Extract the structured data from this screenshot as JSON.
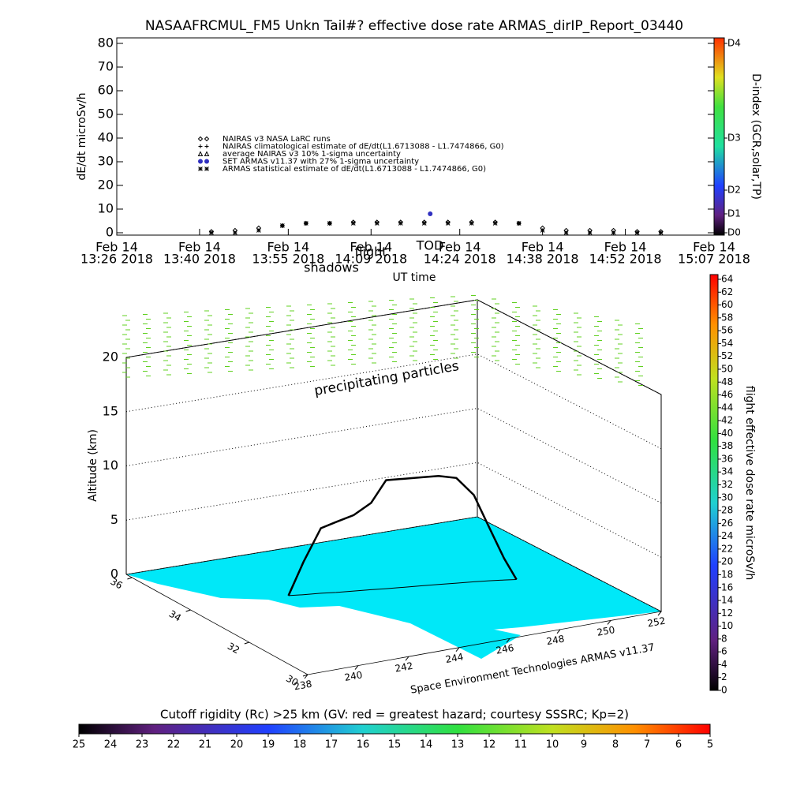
{
  "chart_data": [
    {
      "type": "scatter",
      "title": "NASAAFRCMUL_FM5 Unkn Tail#? effective dose rate ARMAS_dirIP_Report_03440",
      "y_label": "dE/dt microSv/h",
      "x_label": "UT time",
      "annotations": [
        "shadows",
        "flight",
        "TOD"
      ],
      "xlim": [
        "2018-02-14 13:26",
        "2018-02-14 15:07"
      ],
      "xticks": [
        {
          "value": "2018-02-14 13:26",
          "label": [
            "Feb 14",
            "13:26 2018"
          ]
        },
        {
          "value": "2018-02-14 13:40",
          "label": [
            "Feb 14",
            "13:40 2018"
          ]
        },
        {
          "value": "2018-02-14 13:55",
          "label": [
            "Feb 14",
            "13:55 2018"
          ]
        },
        {
          "value": "2018-02-14 14:09",
          "label": [
            "Feb 14",
            "14:09 2018"
          ]
        },
        {
          "value": "2018-02-14 14:24",
          "label": [
            "Feb 14",
            "14:24 2018"
          ]
        },
        {
          "value": "2018-02-14 14:38",
          "label": [
            "Feb 14",
            "14:38 2018"
          ]
        },
        {
          "value": "2018-02-14 14:52",
          "label": [
            "Feb 14",
            "14:52 2018"
          ]
        },
        {
          "value": "2018-02-14 15:07",
          "label": [
            "Feb 14",
            "15:07 2018"
          ]
        }
      ],
      "ylim": [
        0,
        80
      ],
      "yticks": [
        0,
        10,
        20,
        30,
        40,
        50,
        60,
        70,
        80
      ],
      "colorbar_label": "D-index (GCR,solar,TP)",
      "colorbar_ticks": [
        {
          "value": 0,
          "label": "D0"
        },
        {
          "value": 8,
          "label": "D1"
        },
        {
          "value": 18,
          "label": "D2"
        },
        {
          "value": 40,
          "label": "D3"
        },
        {
          "value": 80,
          "label": "D4"
        }
      ],
      "series": [
        {
          "name": "NAIRAS v3 NASA LaRC runs",
          "color": "#000000",
          "marker": "diamond",
          "x": [
            "2018-02-14 13:42",
            "2018-02-14 13:46",
            "2018-02-14 13:50",
            "2018-02-14 13:54",
            "2018-02-14 13:58",
            "2018-02-14 14:02",
            "2018-02-14 14:06",
            "2018-02-14 14:10",
            "2018-02-14 14:14",
            "2018-02-14 14:18",
            "2018-02-14 14:22",
            "2018-02-14 14:26",
            "2018-02-14 14:30",
            "2018-02-14 14:34",
            "2018-02-14 14:38",
            "2018-02-14 14:42",
            "2018-02-14 14:46",
            "2018-02-14 14:50",
            "2018-02-14 14:54",
            "2018-02-14 14:58"
          ],
          "values": [
            0.5,
            1,
            2,
            3,
            4,
            4,
            4.5,
            4.5,
            4.5,
            4.5,
            4.5,
            4.5,
            4.5,
            4,
            2,
            1,
            1,
            1,
            0.5,
            0.5
          ]
        },
        {
          "name": "NAIRAS climatological estimate of dE/dt(L1.6713088 - L1.7474866, G0)",
          "color": "#000000",
          "marker": "plus",
          "x": [],
          "values": []
        },
        {
          "name": "average NAIRAS v3 10% 1-sigma uncertainty",
          "color": "#000000",
          "marker": "triangle",
          "x": [],
          "values": []
        },
        {
          "name": "SET ARMAS v11.37 with 27% 1-sigma uncertainty",
          "color": "#3030c0",
          "marker": "dot",
          "x": [
            "2018-02-14 14:19"
          ],
          "values": [
            8
          ]
        },
        {
          "name": "ARMAS statistical estimate of dE/dt(L1.6713088 - L1.7474866, G0)",
          "color": "#000000",
          "marker": "star",
          "x": [
            "2018-02-14 13:42",
            "2018-02-14 13:46",
            "2018-02-14 13:50",
            "2018-02-14 13:54",
            "2018-02-14 13:58",
            "2018-02-14 14:02",
            "2018-02-14 14:06",
            "2018-02-14 14:10",
            "2018-02-14 14:14",
            "2018-02-14 14:18",
            "2018-02-14 14:22",
            "2018-02-14 14:26",
            "2018-02-14 14:30",
            "2018-02-14 14:34",
            "2018-02-14 14:38",
            "2018-02-14 14:42",
            "2018-02-14 14:46",
            "2018-02-14 14:50",
            "2018-02-14 14:54",
            "2018-02-14 14:58"
          ],
          "values": [
            0,
            0,
            1,
            3,
            4,
            4,
            4,
            4,
            4,
            4,
            4,
            4,
            4,
            4,
            1,
            0,
            0,
            0,
            0,
            0
          ]
        }
      ]
    },
    {
      "type": "path3d",
      "z_label": "Altitude (km)",
      "zlim": [
        0,
        20
      ],
      "zticks": [
        0,
        5,
        10,
        15,
        20
      ],
      "xlim": [
        238,
        252
      ],
      "xticks": [
        238,
        240,
        242,
        244,
        246,
        248,
        250,
        252
      ],
      "ylim": [
        30,
        36.2
      ],
      "yticks": [
        30,
        32,
        34,
        36
      ],
      "annotations": [
        "precipitating particles",
        "Space Environment Technologies ARMAS v11.37"
      ],
      "colorbar_label": "flight effective dose rate microSv/h",
      "colorbar_lim": [
        0,
        64
      ],
      "colorbar_ticks": [
        0,
        2,
        4,
        6,
        8,
        10,
        12,
        14,
        16,
        18,
        20,
        22,
        24,
        26,
        28,
        30,
        32,
        34,
        36,
        38,
        40,
        42,
        44,
        46,
        48,
        50,
        52,
        54,
        56,
        58,
        60,
        62,
        64
      ],
      "bottom_colorbar_label": "Cutoff rigidity (Rc) >25 km (GV: red = greatest hazard; courtesy SSSRC; Kp=2)",
      "bottom_colorbar_lim": [
        25,
        5
      ],
      "bottom_colorbar_ticks": [
        25,
        24,
        23,
        22,
        21,
        20,
        19,
        18,
        17,
        16,
        15,
        14,
        13,
        12,
        11,
        10,
        9,
        8,
        7,
        6,
        5
      ],
      "series": [
        {
          "color": "#000000",
          "lon": [
            241.7,
            242.2,
            242.8,
            243.3,
            243.9,
            244.5,
            245.0,
            245.6,
            246.2,
            246.8,
            247.4,
            248.0,
            248.5,
            249.0,
            249.4
          ],
          "lat": [
            33.85,
            33.77,
            33.69,
            33.6,
            33.52,
            33.44,
            33.36,
            33.28,
            33.2,
            33.12,
            33.03,
            32.95,
            32.87,
            32.78,
            32.7
          ],
          "values": [
            0,
            3,
            6,
            6.5,
            7,
            8,
            10,
            10,
            10,
            10,
            9.7,
            8,
            5,
            2,
            0
          ]
        }
      ]
    }
  ]
}
